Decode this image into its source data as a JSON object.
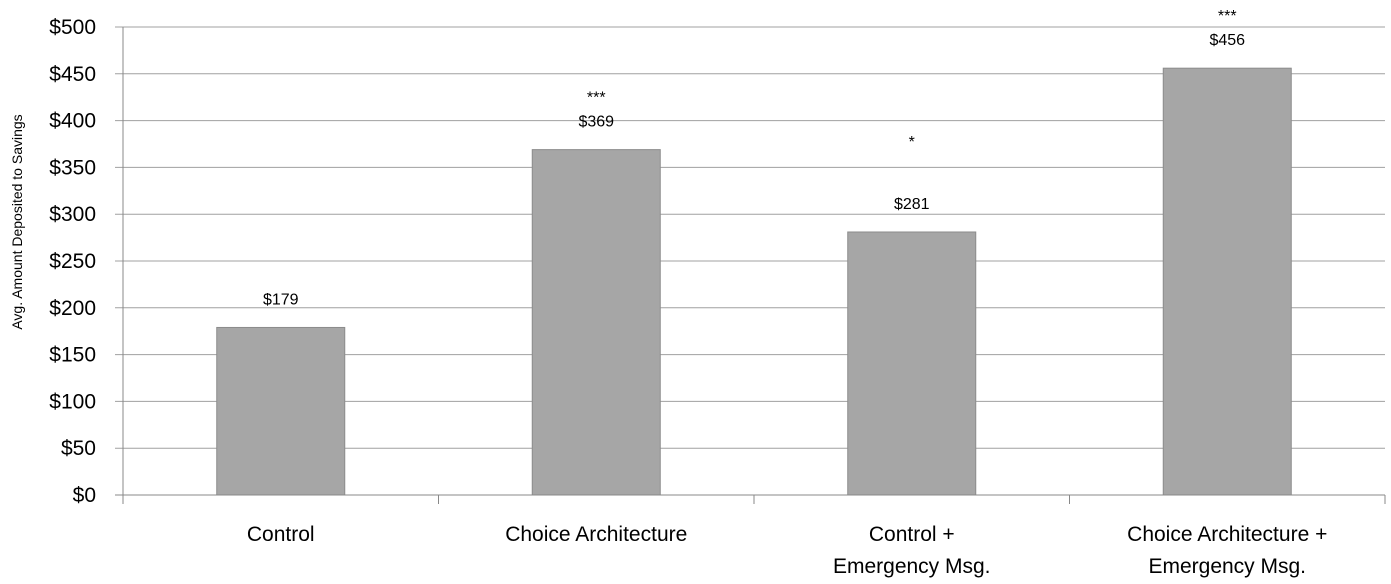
{
  "chart_data": {
    "type": "bar",
    "categories": [
      [
        "Control"
      ],
      [
        "Choice Architecture"
      ],
      [
        "Control +",
        "Emergency Msg."
      ],
      [
        "Choice Architecture +",
        "Emergency Msg."
      ]
    ],
    "values": [
      179,
      369,
      281,
      456
    ],
    "data_labels": [
      "$179",
      "$369",
      "$281",
      "$456"
    ],
    "significance": [
      "",
      "***",
      "*",
      "***"
    ],
    "ylabel": "Avg. Amount Deposited to Savings",
    "ylim": [
      0,
      500
    ],
    "yticks": [
      0,
      50,
      100,
      150,
      200,
      250,
      300,
      350,
      400,
      450,
      500
    ],
    "ytick_labels": [
      "$0",
      "$50",
      "$100",
      "$150",
      "$200",
      "$250",
      "$300",
      "$350",
      "$400",
      "$450",
      "$500"
    ],
    "grid": true,
    "legend": "none",
    "colors": {
      "bar": "#a6a6a6",
      "bar_edge": "#8c8c8c",
      "grid": "#a0a0a0",
      "axis": "#888888"
    }
  }
}
